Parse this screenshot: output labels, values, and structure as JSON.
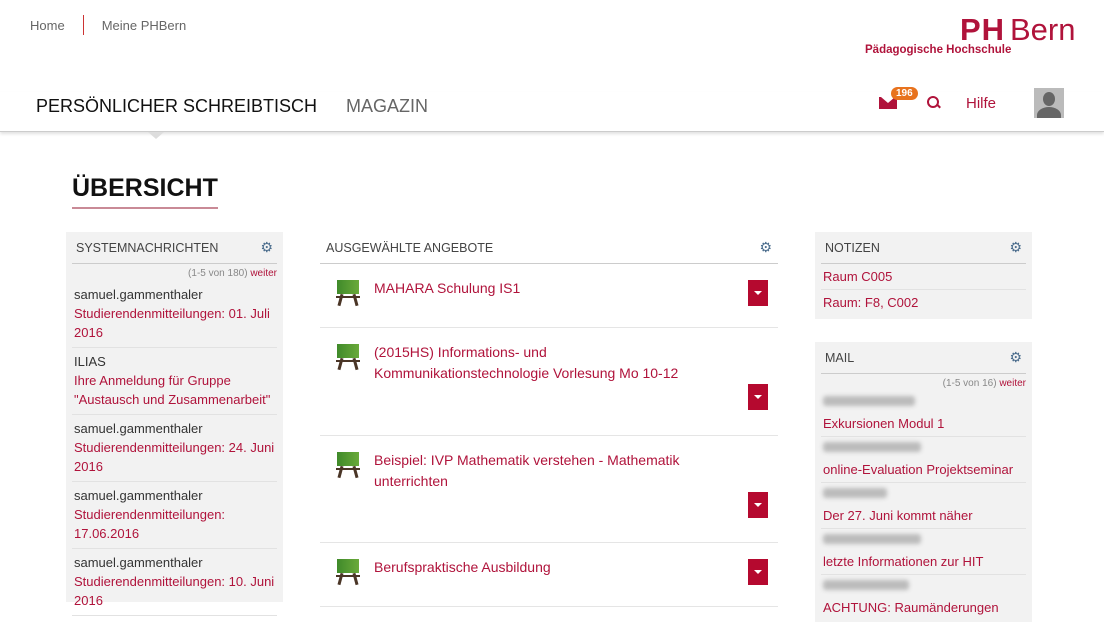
{
  "top": {
    "home": "Home",
    "meine": "Meine PHBern"
  },
  "logo": {
    "ph": "PH",
    "bern": "Bern",
    "sub": "Pädagogische Hochschule"
  },
  "nav": {
    "tabs": [
      "PERSÖNLICHER SCHREIBTISCH",
      "MAGAZIN"
    ],
    "mail_count": "196",
    "hilfe": "Hilfe"
  },
  "page_title": "ÜBERSICHT",
  "system": {
    "title": "SYSTEMNACHRICHTEN",
    "count": "(1-5 von 180)",
    "more": "weiter",
    "items": [
      {
        "sender": "samuel.gammenthaler",
        "subject": "Studierendenmitteilungen: 01. Juli 2016"
      },
      {
        "sender": "ILIAS",
        "subject": "Ihre Anmeldung für Gruppe \"Austausch und Zusammenarbeit\""
      },
      {
        "sender": "samuel.gammenthaler",
        "subject": "Studierendenmitteilungen: 24. Juni 2016"
      },
      {
        "sender": "samuel.gammenthaler",
        "subject": "Studierendenmitteilungen: 17.06.2016"
      },
      {
        "sender": "samuel.gammenthaler",
        "subject": "Studierendenmitteilungen: 10. Juni 2016"
      }
    ]
  },
  "offers": {
    "title": "AUSGEWÄHLTE ANGEBOTE",
    "items": [
      "MAHARA Schulung IS1",
      "(2015HS) Informations- und Kommunikationstechnologie Vorlesung Mo 10-12",
      "Beispiel: IVP Mathematik verstehen - Mathematik unterrichten",
      "Berufspraktische Ausbildung"
    ]
  },
  "notes": {
    "title": "NOTIZEN",
    "items": [
      "Raum C005",
      "Raum: F8, C002"
    ]
  },
  "mail": {
    "title": "MAIL",
    "count": "(1-5 von 16)",
    "more": "weiter",
    "items": [
      "Exkursionen Modul 1",
      "online-Evaluation Projektseminar",
      "Der 27. Juni kommt näher",
      "letzte Informationen zur HIT",
      "ACHTUNG: Raumänderungen"
    ]
  }
}
